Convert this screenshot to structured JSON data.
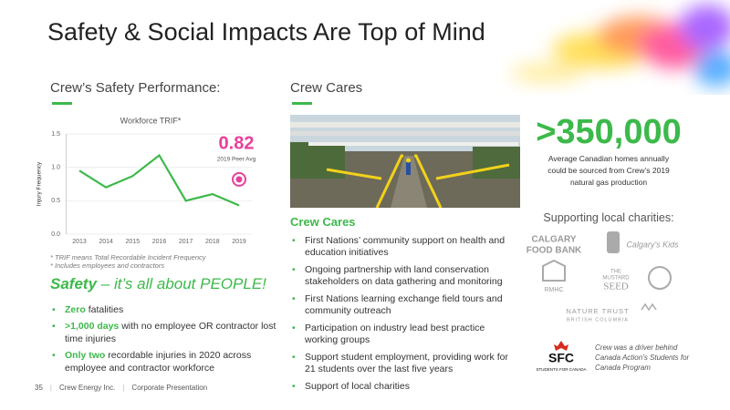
{
  "title": "Safety & Social Impacts Are Top of Mind",
  "safety": {
    "heading": "Crew’s Safety Performance:",
    "footnotes": [
      "* TRIF means Total Recordable Incident Frequency",
      "* Includes employees and contractors"
    ],
    "tagline_strong": "Safety",
    "tagline_rest": "– it’s all about PEOPLE!",
    "bullets": [
      {
        "strong": "Zero",
        "text": "fatalities"
      },
      {
        "strong": ">1,000 days",
        "text": "with no employee OR contractor lost time injuries"
      },
      {
        "strong": "Only two",
        "text": "recordable injuries in 2020 across employee and contractor workforce"
      }
    ]
  },
  "chart_data": {
    "type": "line",
    "title": "Workforce TRIF*",
    "ylabel": "Injury Frequency",
    "categories": [
      "2013",
      "2014",
      "2015",
      "2016",
      "2017",
      "2018",
      "2019"
    ],
    "values": [
      0.95,
      0.7,
      0.87,
      1.18,
      0.5,
      0.6,
      0.43
    ],
    "color": "#3cb94a",
    "ylim": [
      0,
      1.5
    ],
    "yticks": [
      {
        "value": 0,
        "label": "0.0"
      },
      0.5,
      {
        "value": 1,
        "label": "1.0"
      },
      1.5
    ],
    "peer_value": 0.82,
    "peer_label": "2019 Peer Avg",
    "peer_color": "#e8409a"
  },
  "cares": {
    "heading": "Crew Cares",
    "subheading": "Crew Cares",
    "bullets": [
      "First Nations’ community support on health and education initiatives",
      "Ongoing partnership with land conservation stakeholders on data gathering and monitoring",
      "First Nations learning exchange field tours and community outreach",
      "Participation on industry lead best practice working groups",
      "Support student employment, providing work for 21 students over the last five years",
      "Support of local charities"
    ]
  },
  "impact": {
    "figure": ">350,000",
    "text": "Average Canadian homes annually could be sourced from Crew’s 2019 natural gas production",
    "charities_heading": "Supporting local charities:",
    "logos": {
      "food_bank": [
        "CALGARY",
        "FOOD BANK"
      ],
      "kids": "Calgary’s Kids",
      "rmhc": "RMHC",
      "mustard_seed": [
        "THE",
        "MUSTARD",
        "SEED"
      ],
      "nature_trust": [
        "NATURE TRUST",
        "BRITISH COLUMBIA"
      ]
    },
    "sfc": {
      "mark": "SFC",
      "name": "STUDENTS FOR CANADA",
      "caption": "Crew was a driver behind Canada Action’s Students for Canada Program"
    }
  },
  "footer": {
    "page": "35",
    "company": "Crew Energy Inc.",
    "doc": "Corporate Presentation"
  }
}
